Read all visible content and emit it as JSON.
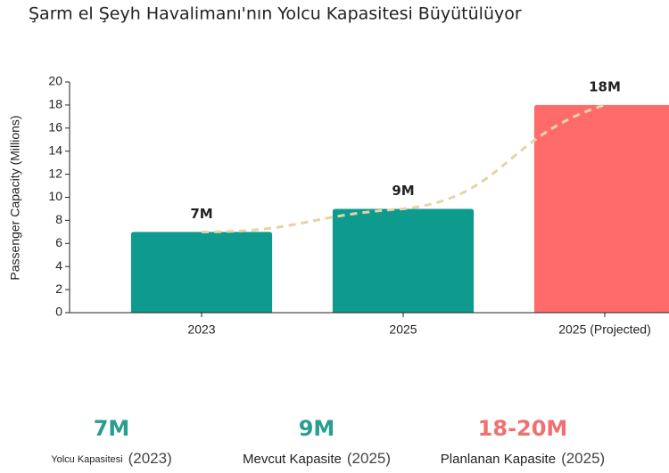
{
  "chart_data": {
    "type": "bar",
    "title": "Şarm el Şeyh Havalimanı'nın Yolcu Kapasitesi Büyütülüyor",
    "y_label": "Passenger Capacity (Millions)",
    "categories": [
      "2023",
      "2025",
      "2025 (Projected)"
    ],
    "values": [
      7,
      9,
      18
    ],
    "value_labels": [
      "7M",
      "9M",
      "18M"
    ],
    "colors": [
      "#0e9a8c",
      "#0e9a8c",
      "#ff6b6b"
    ],
    "trend_color": "#e8d3a6",
    "ylim": [
      0,
      20
    ],
    "yticks": [
      0,
      2,
      4,
      6,
      8,
      10,
      12,
      14,
      16,
      18,
      20
    ]
  },
  "stats": [
    {
      "value": "7M",
      "label": "Yolcu Kapasitesi",
      "year": "(2023)",
      "color": "#2a9d8f"
    },
    {
      "value": "9M",
      "label": "Mevcut Kapasite",
      "year": "(2025)",
      "color": "#2a9d8f"
    },
    {
      "value": "18-20M",
      "label": "Planlanan Kapasite",
      "year": "(2025)",
      "color": "#f07070"
    }
  ]
}
